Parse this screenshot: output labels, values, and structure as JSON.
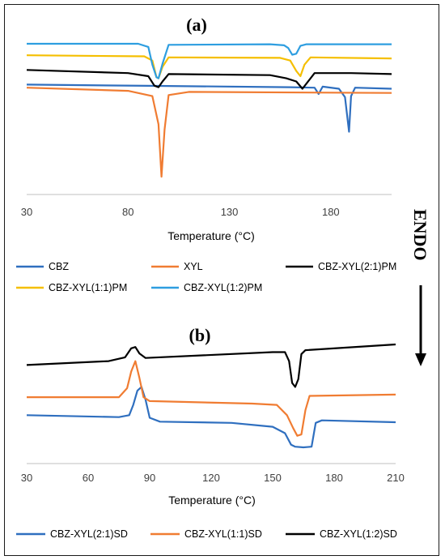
{
  "figure": {
    "side_label": "ENDO",
    "side_arrow": "arrow-down"
  },
  "chart_data": [
    {
      "type": "line",
      "panel_label": "(a)",
      "xlabel": "Temperature (°C)",
      "ylabel": "",
      "xlim": [
        30,
        210
      ],
      "xticks": [
        30,
        80,
        130,
        180
      ],
      "y_axis_hidden": true,
      "grid": false,
      "legend_position": "bottom",
      "series": [
        {
          "name": "CBZ",
          "color": "#2f6fbf",
          "points": [
            [
              30,
              0.3
            ],
            [
              90,
              0.18
            ],
            [
              160,
              0.05
            ],
            [
              172,
              0
            ],
            [
              174,
              -0.6
            ],
            [
              176,
              0.1
            ],
            [
              184,
              -0.1
            ],
            [
              187,
              -0.9
            ],
            [
              189,
              -4.2
            ],
            [
              190,
              -0.8
            ],
            [
              192,
              0
            ],
            [
              210,
              -0.1
            ]
          ]
        },
        {
          "name": "XYL",
          "color": "#f07c32",
          "points": [
            [
              30,
              0
            ],
            [
              80,
              -0.3
            ],
            [
              92,
              -0.8
            ],
            [
              95,
              -3.5
            ],
            [
              96.5,
              -8.5
            ],
            [
              98,
              -4
            ],
            [
              100,
              -0.7
            ],
            [
              110,
              -0.4
            ],
            [
              210,
              -0.5
            ]
          ]
        },
        {
          "name": "CBZ-XYL(2:1)PM",
          "color": "#000000",
          "points": [
            [
              30,
              1.7
            ],
            [
              80,
              1.4
            ],
            [
              90,
              1.1
            ],
            [
              93,
              0.2
            ],
            [
              95,
              0.05
            ],
            [
              97,
              0.6
            ],
            [
              100,
              1.3
            ],
            [
              150,
              1.2
            ],
            [
              158,
              0.9
            ],
            [
              163,
              0.6
            ],
            [
              166,
              -0.1
            ],
            [
              168,
              0.4
            ],
            [
              172,
              1.4
            ],
            [
              190,
              1.4
            ],
            [
              210,
              1.3
            ]
          ]
        },
        {
          "name": "CBZ-XYL(1:1)PM",
          "color": "#f5bf00",
          "points": [
            [
              30,
              3.1
            ],
            [
              88,
              3
            ],
            [
              92,
              2.6
            ],
            [
              94,
              1.0
            ],
            [
              95,
              0.9
            ],
            [
              97,
              2
            ],
            [
              100,
              2.9
            ],
            [
              155,
              2.85
            ],
            [
              160,
              2.6
            ],
            [
              163,
              1.6
            ],
            [
              165,
              1.1
            ],
            [
              167,
              2.2
            ],
            [
              170,
              2.9
            ],
            [
              210,
              2.8
            ]
          ]
        },
        {
          "name": "CBZ-XYL(1:2)PM",
          "color": "#2e9ee0",
          "points": [
            [
              30,
              4.2
            ],
            [
              85,
              4.2
            ],
            [
              90,
              3.9
            ],
            [
              92,
              2.2
            ],
            [
              94,
              1.0
            ],
            [
              95,
              0.9
            ],
            [
              97,
              2.3
            ],
            [
              100,
              4.1
            ],
            [
              150,
              4.15
            ],
            [
              157,
              4.05
            ],
            [
              159,
              3.8
            ],
            [
              161,
              3.15
            ],
            [
              163,
              3.25
            ],
            [
              165,
              4
            ],
            [
              168,
              4.15
            ],
            [
              210,
              4.15
            ]
          ]
        }
      ]
    },
    {
      "type": "line",
      "panel_label": "(b)",
      "xlabel": "Temperature (°C)",
      "ylabel": "",
      "xlim": [
        30,
        210
      ],
      "xticks": [
        30,
        60,
        90,
        120,
        150,
        180,
        210
      ],
      "y_axis_hidden": true,
      "grid": false,
      "legend_position": "bottom",
      "series": [
        {
          "name": "CBZ-XYL(2:1)SD",
          "color": "#2f6fbf",
          "points": [
            [
              30,
              2.6
            ],
            [
              75,
              2.45
            ],
            [
              80,
              2.6
            ],
            [
              82,
              3.4
            ],
            [
              84,
              4.5
            ],
            [
              86,
              4.8
            ],
            [
              88,
              3.8
            ],
            [
              90,
              2.4
            ],
            [
              95,
              2.1
            ],
            [
              130,
              2.0
            ],
            [
              150,
              1.7
            ],
            [
              156,
              1.2
            ],
            [
              159,
              0.3
            ],
            [
              161,
              0.15
            ],
            [
              165,
              0.1
            ],
            [
              169,
              0.15
            ],
            [
              171,
              2.0
            ],
            [
              174,
              2.2
            ],
            [
              210,
              2.05
            ]
          ]
        },
        {
          "name": "CBZ-XYL(1:1)SD",
          "color": "#f07c32",
          "points": [
            [
              30,
              4.0
            ],
            [
              75,
              4.0
            ],
            [
              79,
              4.7
            ],
            [
              81,
              6.0
            ],
            [
              83,
              6.8
            ],
            [
              85,
              5.5
            ],
            [
              87,
              4.0
            ],
            [
              90,
              3.7
            ],
            [
              140,
              3.5
            ],
            [
              152,
              3.4
            ],
            [
              157,
              2.6
            ],
            [
              160,
              1.6
            ],
            [
              162,
              1.0
            ],
            [
              164,
              1.1
            ],
            [
              166,
              3.0
            ],
            [
              168,
              4.1
            ],
            [
              210,
              4.2
            ]
          ]
        },
        {
          "name": "CBZ-XYL(1:2)SD",
          "color": "#000000",
          "points": [
            [
              30,
              6.5
            ],
            [
              70,
              6.8
            ],
            [
              78,
              7.1
            ],
            [
              81,
              7.8
            ],
            [
              83,
              7.9
            ],
            [
              85,
              7.4
            ],
            [
              88,
              7.05
            ],
            [
              150,
              7.5
            ],
            [
              156,
              7.5
            ],
            [
              158,
              6.8
            ],
            [
              159.5,
              5.1
            ],
            [
              161,
              4.8
            ],
            [
              162.5,
              5.4
            ],
            [
              164,
              7.35
            ],
            [
              166,
              7.65
            ],
            [
              210,
              8.1
            ]
          ]
        }
      ]
    }
  ]
}
